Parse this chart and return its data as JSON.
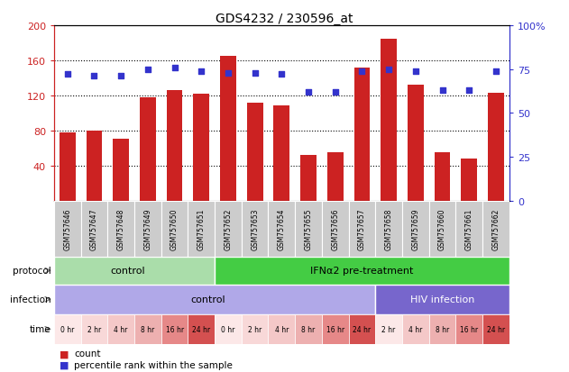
{
  "title": "GDS4232 / 230596_at",
  "samples": [
    "GSM757646",
    "GSM757647",
    "GSM757648",
    "GSM757649",
    "GSM757650",
    "GSM757651",
    "GSM757652",
    "GSM757653",
    "GSM757654",
    "GSM757655",
    "GSM757656",
    "GSM757657",
    "GSM757658",
    "GSM757659",
    "GSM757660",
    "GSM757661",
    "GSM757662"
  ],
  "counts": [
    78,
    80,
    70,
    118,
    126,
    122,
    165,
    112,
    108,
    52,
    55,
    152,
    185,
    132,
    55,
    48,
    123
  ],
  "percentile_ranks": [
    72,
    71,
    71,
    75,
    76,
    74,
    73,
    73,
    72,
    62,
    62,
    74,
    75,
    74,
    63,
    63,
    74
  ],
  "left_ylim": [
    0,
    200
  ],
  "left_yticks": [
    40,
    80,
    120,
    160,
    200
  ],
  "right_ylim": [
    0,
    100
  ],
  "right_yticks": [
    0,
    25,
    50,
    75,
    100
  ],
  "right_ytick_labels": [
    "0",
    "25",
    "50",
    "75",
    "100%"
  ],
  "bar_color": "#cc2222",
  "dot_color": "#3333cc",
  "bg_color": "#ffffff",
  "chart_border_color": "#000000",
  "label_box_color": "#cccccc",
  "protocol_control_color": "#aaddaa",
  "protocol_ifna2_color": "#44cc44",
  "infection_control_color": "#b0a8e8",
  "infection_hiv_color": "#7766cc",
  "time_colors": [
    "#fce8e8",
    "#f8d8d8",
    "#f4c8c8",
    "#edb0b0",
    "#e68888",
    "#d45050",
    "#fce8e8",
    "#f8d8d8",
    "#f4c8c8",
    "#edb0b0",
    "#e68888",
    "#d45050",
    "#fce8e8",
    "#f4c8c8",
    "#edb0b0",
    "#e68888",
    "#d45050"
  ],
  "time_labels": [
    "0 hr",
    "2 hr",
    "4 hr",
    "8 hr",
    "16 hr",
    "24 hr",
    "0 hr",
    "2 hr",
    "4 hr",
    "8 hr",
    "16 hr",
    "24 hr",
    "2 hr",
    "4 hr",
    "8 hr",
    "16 hr",
    "24 hr"
  ],
  "protocol_split": 6,
  "infection_split": 12
}
